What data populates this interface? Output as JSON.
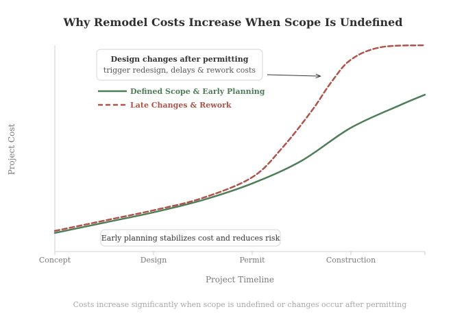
{
  "chart_data": {
    "type": "line",
    "title": "Why Remodel Costs Increase When Scope Is Undefined",
    "xlabel": "Project Timeline",
    "ylabel": "Project Cost",
    "caption": "Costs increase significantly when scope is undefined or changes occur after permitting",
    "categories": [
      "Concept",
      "Design",
      "Permit",
      "Construction"
    ],
    "xlim": [
      0,
      3.75
    ],
    "ylim": [
      0,
      100
    ],
    "grid": false,
    "legend_position": "top-left",
    "series": [
      {
        "name": "Defined Scope & Early Planning",
        "color": "#4e7d57",
        "dash": "solid",
        "x": [
          0,
          0.5,
          1,
          1.5,
          2,
          2.5,
          3,
          3.5,
          3.75
        ],
        "y": [
          9,
          14,
          19,
          25,
          33,
          44,
          60,
          71,
          76
        ]
      },
      {
        "name": "Late Changes & Rework",
        "color": "#b0524a",
        "dash": "dashed",
        "x": [
          0,
          0.5,
          1,
          1.5,
          2,
          2.3,
          2.6,
          2.8,
          3,
          3.3,
          3.75
        ],
        "y": [
          10,
          15,
          20,
          26,
          36,
          50,
          68,
          82,
          93,
          99,
          100
        ]
      }
    ],
    "annotations": [
      {
        "id": "late",
        "title": "Design changes after permitting",
        "text": "trigger redesign, delays & rework costs",
        "arrow_to": [
          2.72,
          85
        ]
      },
      {
        "id": "early",
        "text": "Early planning stabilizes cost and reduces risk"
      }
    ]
  }
}
